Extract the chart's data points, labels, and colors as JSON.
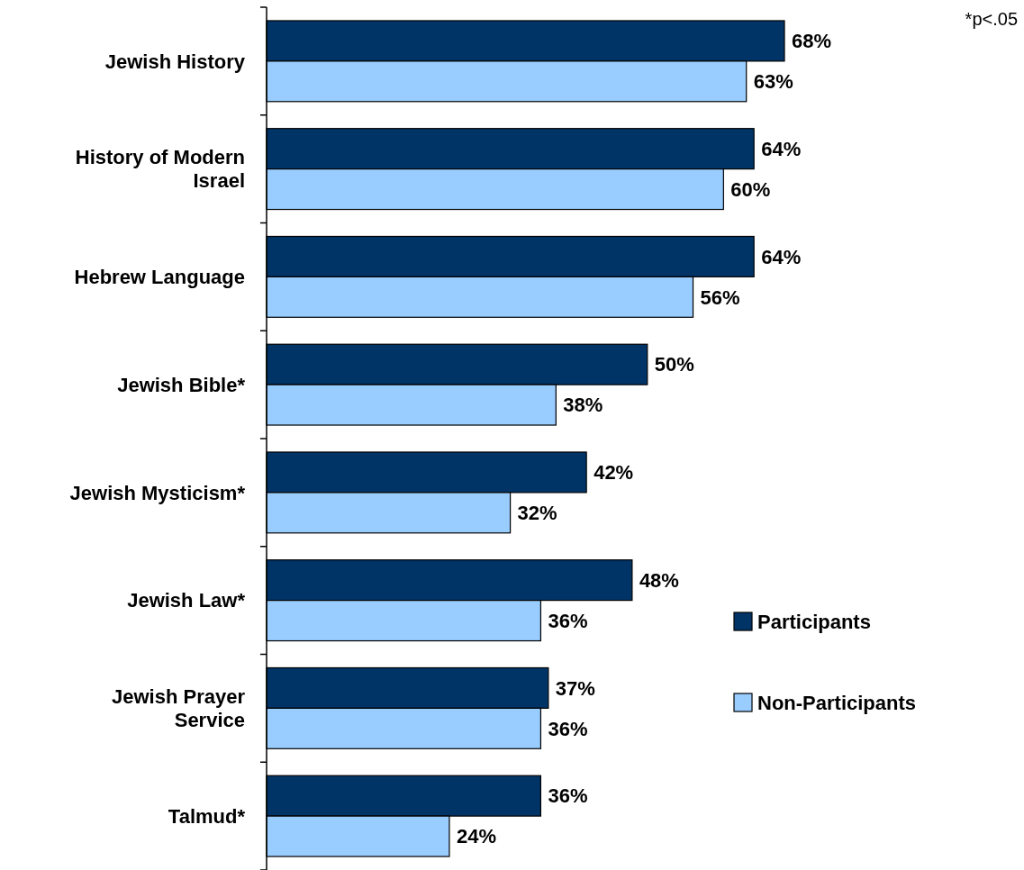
{
  "chart_data": {
    "type": "bar",
    "orientation": "horizontal",
    "categories": [
      "Jewish History",
      "History of Modern Israel",
      "Hebrew Language",
      "Jewish Bible*",
      "Jewish Mysticism*",
      "Jewish Law*",
      "Jewish Prayer Service",
      "Talmud*"
    ],
    "series": [
      {
        "name": "Participants",
        "color": "#003366",
        "values": [
          68,
          64,
          64,
          50,
          42,
          48,
          37,
          36
        ],
        "value_labels": [
          "68%",
          "64%",
          "64%",
          "50%",
          "42%",
          "48%",
          "37%",
          "36%"
        ]
      },
      {
        "name": "Non-Participants",
        "color": "#99ccff",
        "values": [
          63,
          60,
          56,
          38,
          32,
          36,
          36,
          24
        ],
        "value_labels": [
          "63%",
          "60%",
          "56%",
          "38%",
          "32%",
          "36%",
          "36%",
          "24%"
        ]
      }
    ],
    "legend": "right",
    "annotations": [
      "*p<.05"
    ]
  }
}
